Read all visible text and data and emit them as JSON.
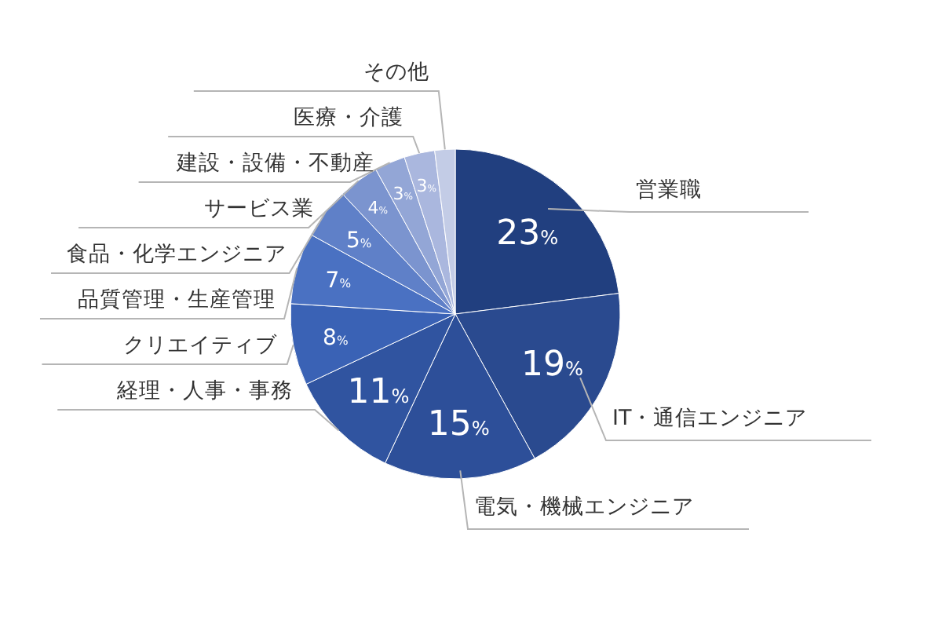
{
  "chart_data": {
    "type": "pie",
    "categories": [
      "営業職",
      "IT・通信エンジニア",
      "電気・機械エンジニア",
      "経理・人事・事務",
      "クリエイティブ",
      "品質管理・生産管理",
      "食品・化学エンジニア",
      "サービス業",
      "建設・設備・不動産",
      "医療・介護",
      "その他"
    ],
    "values": [
      23,
      19,
      15,
      11,
      8,
      7,
      5,
      4,
      3,
      3,
      2
    ],
    "value_labels": [
      "23%",
      "19%",
      "15%",
      "11%",
      "8%",
      "7%",
      "5%",
      "4%",
      "3%",
      "3%",
      null
    ],
    "colors": [
      "#213f7f",
      "#2a4a8f",
      "#2d4f99",
      "#3054a0",
      "#3a62b5",
      "#4a71c2",
      "#5f80c8",
      "#7b94cf",
      "#93a6d6",
      "#aab7de",
      "#c3cce6"
    ]
  }
}
